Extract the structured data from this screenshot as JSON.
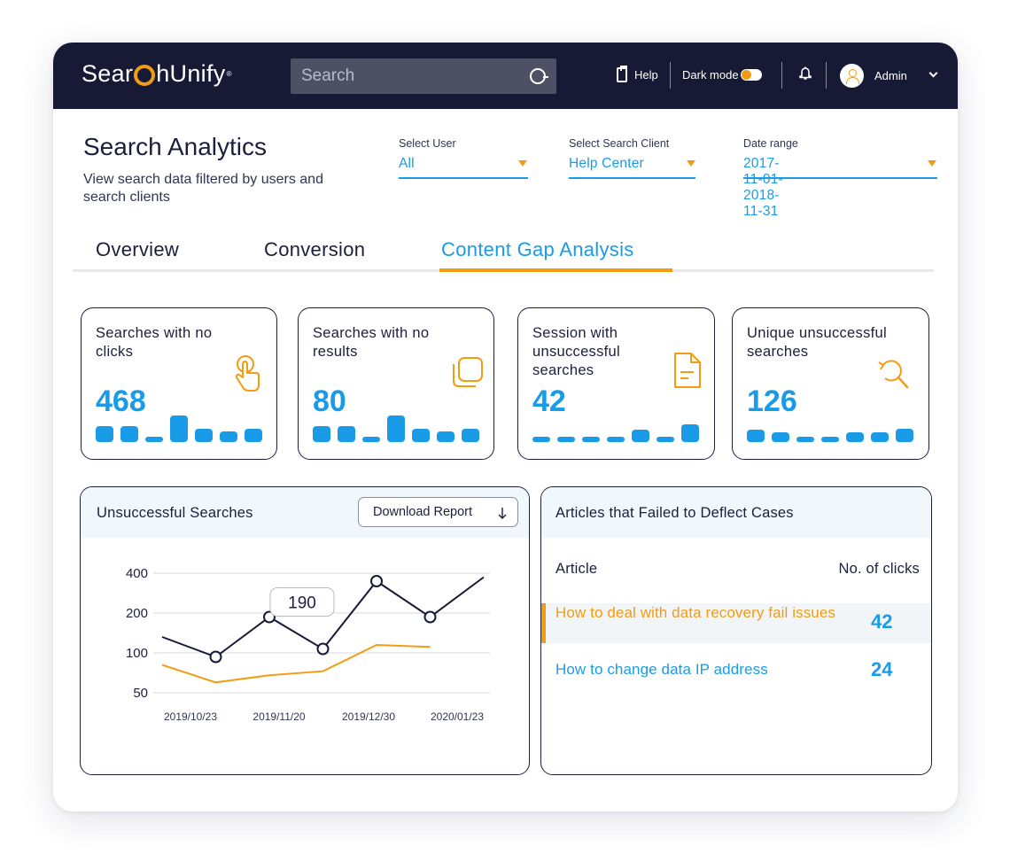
{
  "header": {
    "logo_text_1": "Sear",
    "logo_text_2": "hUnify",
    "logo_mark": "®",
    "search_placeholder": "Search",
    "help_label": "Help",
    "dark_mode_label": "Dark mode",
    "dark_mode_on": true,
    "user_name": "Admin"
  },
  "page": {
    "title": "Search Analytics",
    "subtitle": "View search data filtered by users and search clients"
  },
  "filters": {
    "user_label": "Select User",
    "user_value": "All",
    "client_label": "Select Search Client",
    "client_value": "Help Center",
    "date_label": "Date range",
    "date_value": "2017-11-01-2018-11-31"
  },
  "tabs": [
    {
      "label": "Overview",
      "active": false
    },
    {
      "label": "Conversion",
      "active": false
    },
    {
      "label": "Content Gap Analysis",
      "active": true
    }
  ],
  "cards": [
    {
      "title": "Searches with no clicks",
      "value": "468",
      "icon": "tap-hand-icon",
      "bars": [
        0.6,
        0.6,
        0.2,
        1.0,
        0.5,
        0.4,
        0.5
      ]
    },
    {
      "title": "Searches with no results",
      "value": "80",
      "icon": "copy-icon",
      "bars": [
        0.6,
        0.6,
        0.2,
        1.0,
        0.5,
        0.4,
        0.5
      ]
    },
    {
      "title": "Session with unsuccessful searches",
      "value": "42",
      "icon": "document-icon",
      "bars": [
        0.2,
        0.2,
        0.2,
        0.2,
        0.45,
        0.2,
        0.65
      ]
    },
    {
      "title": "Unique unsuccessful searches",
      "value": "126",
      "icon": "search-refresh-icon",
      "bars": [
        0.45,
        0.35,
        0.2,
        0.2,
        0.35,
        0.35,
        0.5
      ]
    }
  ],
  "unsuccessful_panel": {
    "title": "Unsuccessful Searches",
    "download_label": "Download Report",
    "tooltip_value": "190"
  },
  "chart_data": {
    "type": "line",
    "title": "Unsuccessful Searches",
    "y_ticks": [
      "400",
      "200",
      "100",
      "50"
    ],
    "x_ticks": [
      "2019/10/23",
      "2019/11/20",
      "2019/12/30",
      "2020/01/23"
    ],
    "y_scale": "categorical-ticks",
    "series": [
      {
        "color": "#161a35",
        "points": [
          [
            0,
            140
          ],
          [
            1,
            95
          ],
          [
            2,
            190
          ],
          [
            3,
            110
          ],
          [
            4,
            360
          ],
          [
            5,
            190
          ],
          [
            6,
            380
          ]
        ],
        "markers": [
          1,
          2,
          3,
          4,
          5
        ]
      },
      {
        "color": "#f39c12",
        "points": [
          [
            0,
            85
          ],
          [
            1,
            63
          ],
          [
            2,
            72
          ],
          [
            3,
            77
          ],
          [
            4,
            120
          ],
          [
            5,
            115
          ]
        ],
        "markers": []
      }
    ],
    "annotation": {
      "point_index": 2,
      "label": "190"
    },
    "grid": true
  },
  "articles_panel": {
    "title": "Articles that Failed to Deflect Cases",
    "col_article": "Article",
    "col_clicks": "No. of clicks",
    "rows": [
      {
        "article": "How to deal with data recovery fail issues",
        "clicks": "42",
        "highlighted": true
      },
      {
        "article": "How to change data IP address",
        "clicks": "24",
        "highlighted": false
      }
    ]
  },
  "colors": {
    "navy": "#161a35",
    "accent_blue": "#1a9be8",
    "accent_orange": "#f39c12"
  }
}
